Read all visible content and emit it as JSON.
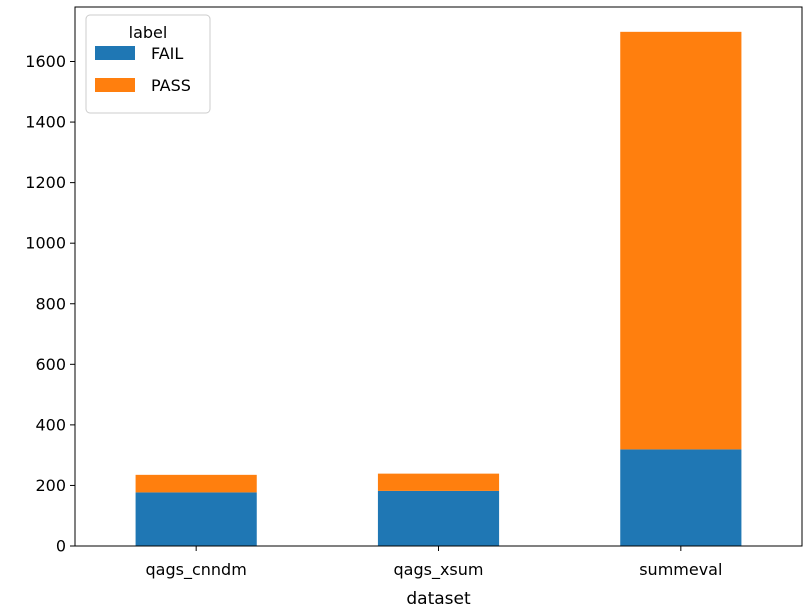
{
  "chart_data": {
    "type": "bar",
    "stacked": true,
    "categories": [
      "qags_cnndm",
      "qags_xsum",
      "summeval"
    ],
    "series": [
      {
        "name": "FAIL",
        "values": [
          177,
          182,
          319
        ],
        "color": "#1f77b4"
      },
      {
        "name": "PASS",
        "values": [
          58,
          57,
          1379
        ],
        "color": "#ff7f0e"
      }
    ],
    "xlabel": "dataset",
    "ylabel": "",
    "title": "",
    "ylim": [
      0,
      1780
    ],
    "yticks": [
      0,
      200,
      400,
      600,
      800,
      1000,
      1200,
      1400,
      1600
    ],
    "legend": {
      "title": "label",
      "placement": "top-left"
    },
    "grid": false
  }
}
